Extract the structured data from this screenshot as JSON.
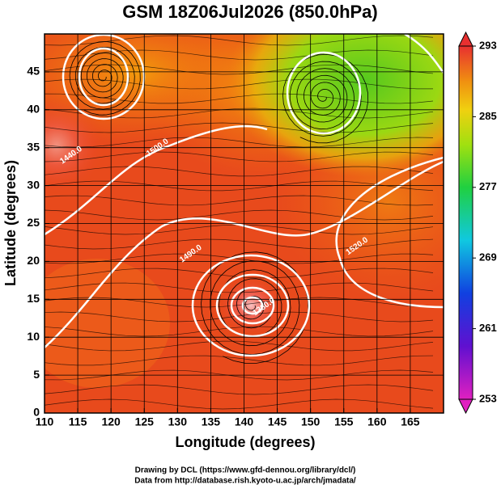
{
  "chart_data": {
    "type": "map",
    "title": "GSM 18Z06Jul2026 (850.0hPa)",
    "x_label": "Longitude (degrees)",
    "y_label": "Latitude  (degrees)",
    "xlim": [
      110,
      170
    ],
    "ylim": [
      0,
      50
    ],
    "xticks": [
      110,
      115,
      120,
      125,
      130,
      135,
      140,
      145,
      150,
      155,
      160,
      165
    ],
    "yticks": [
      0,
      5,
      10,
      15,
      20,
      25,
      30,
      35,
      40,
      45
    ],
    "grid": true,
    "colorbar": {
      "lim": [
        253,
        293
      ],
      "ticks": [
        253,
        261,
        269,
        277,
        285,
        293
      ]
    },
    "contour_labels": [
      {
        "lon": 114,
        "lat": 34,
        "label": "1440.0"
      },
      {
        "lon": 127,
        "lat": 35,
        "label": "1500.0"
      },
      {
        "lon": 132,
        "lat": 21,
        "label": "1490.0"
      },
      {
        "lon": 143,
        "lat": 14,
        "label": "1380.0"
      },
      {
        "lon": 157,
        "lat": 22,
        "label": "1520.0"
      }
    ],
    "credits": [
      "Drawing by DCL (https://www.gfd-dennou.org/library/dcl/)",
      "Data from http://database.rish.kyoto-u.ac.jp/arch/jmadata/"
    ]
  }
}
